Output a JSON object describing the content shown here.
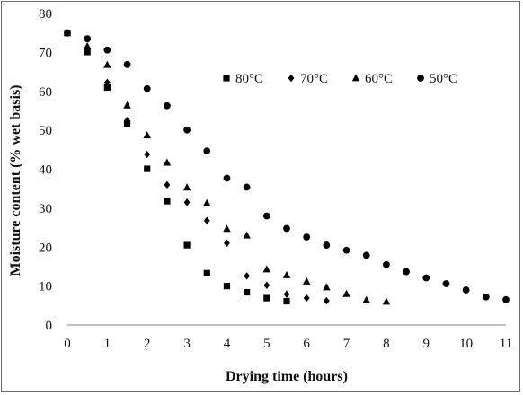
{
  "chart_data": {
    "type": "scatter",
    "title": "",
    "xlabel": "Drying time (hours)",
    "ylabel": "Moisture content (% wet basis)",
    "xlim": [
      0,
      11
    ],
    "ylim": [
      0,
      80
    ],
    "xticks": [
      0,
      1,
      2,
      3,
      4,
      5,
      6,
      7,
      8,
      9,
      10,
      11
    ],
    "yticks": [
      0,
      10,
      20,
      30,
      40,
      50,
      60,
      70,
      80
    ],
    "grid": false,
    "legend_position": "top-right",
    "series": [
      {
        "name": "80°C",
        "marker": "square",
        "x": [
          0,
          0.5,
          1,
          1.5,
          2,
          2.5,
          3,
          3.5,
          4,
          4.5,
          5,
          5.5
        ],
        "y": [
          75,
          70.1,
          61,
          51.7,
          40.1,
          31.8,
          20.5,
          13.3,
          10,
          8.4,
          6.9,
          6.1
        ]
      },
      {
        "name": "70°C",
        "marker": "diamond",
        "x": [
          0,
          0.5,
          1,
          1.5,
          2,
          2.5,
          3,
          3.5,
          4,
          4.5,
          5,
          5.5,
          6,
          6.5
        ],
        "y": [
          75,
          70.7,
          62.3,
          52.5,
          43.8,
          36,
          31.5,
          26.8,
          21,
          12.6,
          10.2,
          7.9,
          6.9,
          6.2
        ]
      },
      {
        "name": "60°C",
        "marker": "triangle",
        "x": [
          0,
          0.5,
          1,
          1.5,
          2,
          2.5,
          3,
          3.5,
          4,
          4.5,
          5,
          5.5,
          6,
          6.5,
          7,
          7.5,
          8
        ],
        "y": [
          75,
          71.6,
          66.8,
          56.4,
          48.7,
          41.7,
          35.3,
          31.3,
          24.7,
          23,
          14.3,
          12.8,
          11.2,
          9.7,
          8,
          6.4,
          6
        ]
      },
      {
        "name": "50°C",
        "marker": "circle",
        "x": [
          0,
          0.5,
          1,
          1.5,
          2,
          2.5,
          3,
          3.5,
          4,
          4.5,
          5,
          5.5,
          6,
          6.5,
          7,
          7.5,
          8,
          8.5,
          9,
          9.5,
          10,
          10.5,
          11
        ],
        "y": [
          75,
          73.5,
          70.6,
          66.9,
          60.7,
          56.3,
          50.1,
          44.7,
          37.7,
          35.4,
          28,
          24.8,
          22.6,
          20.5,
          19.2,
          17.9,
          15.5,
          13.7,
          12.1,
          10.6,
          9,
          7.2,
          6.5
        ]
      }
    ]
  }
}
